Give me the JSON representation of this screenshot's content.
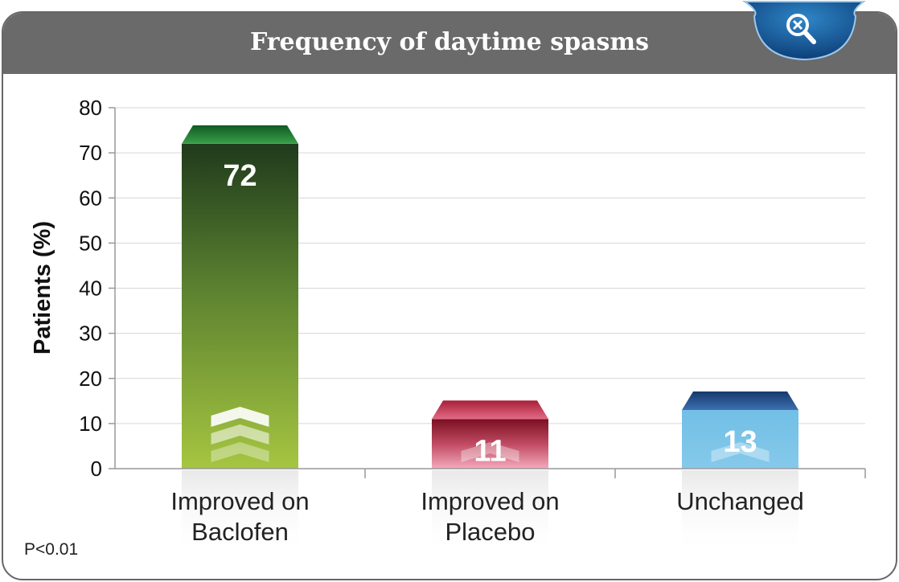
{
  "header": {
    "title": "Frequency of daytime spasms"
  },
  "zoom": {
    "icon": "zoom-out-icon"
  },
  "footnote": "P<0.01",
  "colors": {
    "baclofen_top": "#1f3a1c",
    "baclofen_bottom": "#a6c541",
    "baclofen_cap": "#2e8a3b",
    "placebo_top": "#7a0f20",
    "placebo_bottom": "#ef9fb2",
    "placebo_cap": "#c4384d",
    "unchanged_top": "#74c0e6",
    "unchanged_bottom": "#7fc6e9",
    "unchanged_cap": "#1f4f86"
  },
  "chart_data": {
    "type": "bar",
    "title": "Frequency of daytime spasms",
    "xlabel": "",
    "ylabel": "Patients (%)",
    "ylim": [
      0,
      80
    ],
    "yticks": [
      0,
      10,
      20,
      30,
      40,
      50,
      60,
      70,
      80
    ],
    "categories": [
      "Improved on Baclofen",
      "Improved on Placebo",
      "Unchanged"
    ],
    "category_lines": [
      [
        "Improved on",
        "Baclofen"
      ],
      [
        "Improved on",
        "Placebo"
      ],
      [
        "Unchanged"
      ]
    ],
    "values": [
      72,
      11,
      13
    ],
    "data_labels": [
      "72",
      "11",
      "13"
    ],
    "grid": true,
    "legend": "none"
  }
}
